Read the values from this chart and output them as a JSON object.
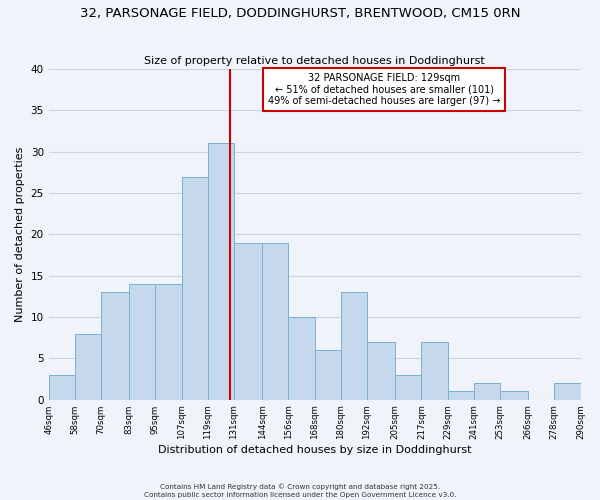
{
  "title": "32, PARSONAGE FIELD, DODDINGHURST, BRENTWOOD, CM15 0RN",
  "subtitle": "Size of property relative to detached houses in Doddinghurst",
  "xlabel": "Distribution of detached houses by size in Doddinghurst",
  "ylabel": "Number of detached properties",
  "bin_edges": [
    46,
    58,
    70,
    83,
    95,
    107,
    119,
    131,
    144,
    156,
    168,
    180,
    192,
    205,
    217,
    229,
    241,
    253,
    266,
    278,
    290
  ],
  "bin_labels": [
    "46sqm",
    "58sqm",
    "70sqm",
    "83sqm",
    "95sqm",
    "107sqm",
    "119sqm",
    "131sqm",
    "144sqm",
    "156sqm",
    "168sqm",
    "180sqm",
    "192sqm",
    "205sqm",
    "217sqm",
    "229sqm",
    "241sqm",
    "253sqm",
    "266sqm",
    "278sqm",
    "290sqm"
  ],
  "counts": [
    3,
    8,
    13,
    14,
    14,
    27,
    31,
    19,
    19,
    10,
    6,
    13,
    7,
    3,
    7,
    1,
    2,
    1,
    0,
    2
  ],
  "bar_color": "#c6d9ec",
  "bar_edge_color": "#7aafd4",
  "vline_x": 129,
  "vline_color": "#cc0000",
  "ylim": [
    0,
    40
  ],
  "annotation_title": "32 PARSONAGE FIELD: 129sqm",
  "annotation_line1": "← 51% of detached houses are smaller (101)",
  "annotation_line2": "49% of semi-detached houses are larger (97) →",
  "annotation_box_color": "#ffffff",
  "annotation_box_edge": "#cc0000",
  "footer1": "Contains HM Land Registry data © Crown copyright and database right 2025.",
  "footer2": "Contains public sector information licensed under the Open Government Licence v3.0.",
  "background_color": "#f0f4fa",
  "grid_color": "#c8d4e4"
}
